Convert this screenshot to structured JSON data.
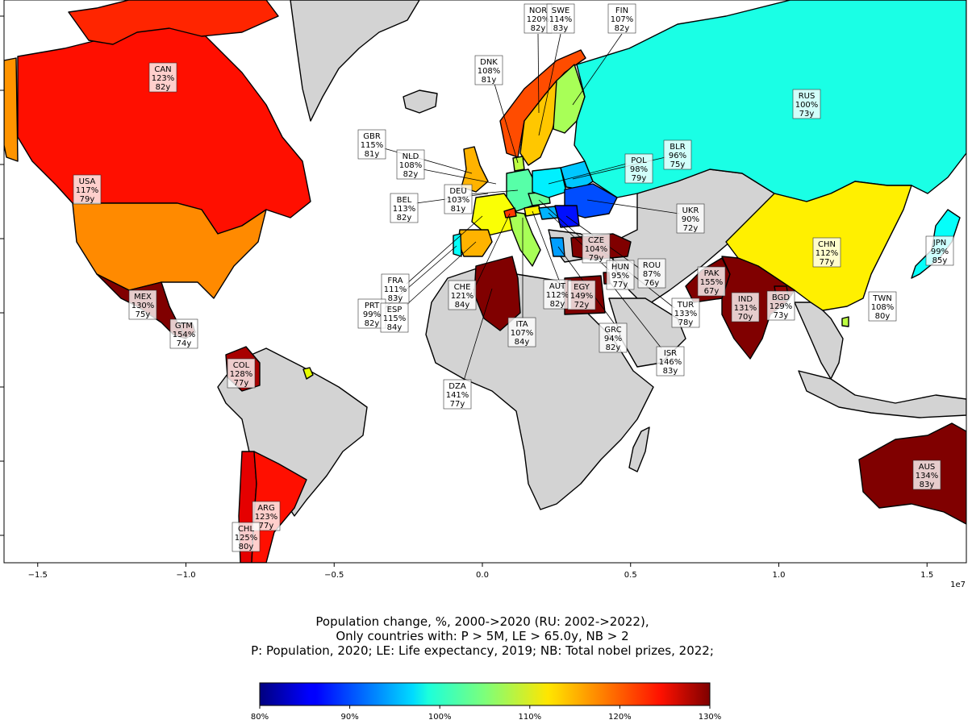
{
  "chart_data": {
    "type": "choropleth-map",
    "title_lines": [
      "Population change, %, 2000->2020 (RU: 2002->2022),",
      "Only countries with:  P > 5M, LE > 65.0y, NB > 2",
      "P: Population, 2020; LE: Life expectancy, 2019; NB: Total nobel prizes, 2022;"
    ],
    "x_axis": {
      "ticks": [
        {
          "value": -15000000,
          "label": "−1.5"
        },
        {
          "value": -10000000,
          "label": "−1.0"
        },
        {
          "value": -5000000,
          "label": "−0.5"
        },
        {
          "value": 0,
          "label": "0.0"
        },
        {
          "value": 5000000,
          "label": "0.5"
        },
        {
          "value": 10000000,
          "label": "1.0"
        },
        {
          "value": 15000000,
          "label": "1.5"
        }
      ],
      "offset_label": "1e7"
    },
    "colorbar": {
      "range": [
        80,
        130
      ],
      "ticks": [
        {
          "value": 80,
          "label": "80%"
        },
        {
          "value": 90,
          "label": "90%"
        },
        {
          "value": 100,
          "label": "100%"
        },
        {
          "value": 110,
          "label": "110%"
        },
        {
          "value": 120,
          "label": "120%"
        },
        {
          "value": 130,
          "label": "130%"
        }
      ],
      "colormap": "jet"
    },
    "other_land_color": "#d3d3d3",
    "countries": [
      {
        "code": "CAN",
        "pop_change": "123%",
        "life_exp": "82y",
        "value": 123
      },
      {
        "code": "USA",
        "pop_change": "117%",
        "life_exp": "79y",
        "value": 117
      },
      {
        "code": "MEX",
        "pop_change": "130%",
        "life_exp": "75y",
        "value": 130
      },
      {
        "code": "GTM",
        "pop_change": "154%",
        "life_exp": "74y",
        "value": 154
      },
      {
        "code": "COL",
        "pop_change": "128%",
        "life_exp": "77y",
        "value": 128
      },
      {
        "code": "ARG",
        "pop_change": "123%",
        "life_exp": "77y",
        "value": 123
      },
      {
        "code": "CHL",
        "pop_change": "125%",
        "life_exp": "80y",
        "value": 125
      },
      {
        "code": "GBR",
        "pop_change": "115%",
        "life_exp": "81y",
        "value": 115
      },
      {
        "code": "NLD",
        "pop_change": "108%",
        "life_exp": "82y",
        "value": 108
      },
      {
        "code": "BEL",
        "pop_change": "113%",
        "life_exp": "82y",
        "value": 113
      },
      {
        "code": "DEU",
        "pop_change": "103%",
        "life_exp": "81y",
        "value": 103
      },
      {
        "code": "FRA",
        "pop_change": "111%",
        "life_exp": "83y",
        "value": 111
      },
      {
        "code": "PRT",
        "pop_change": "99%",
        "life_exp": "82y",
        "value": 99
      },
      {
        "code": "ESP",
        "pop_change": "115%",
        "life_exp": "84y",
        "value": 115
      },
      {
        "code": "CHE",
        "pop_change": "121%",
        "life_exp": "84y",
        "value": 121
      },
      {
        "code": "ITA",
        "pop_change": "107%",
        "life_exp": "84y",
        "value": 107
      },
      {
        "code": "AUT",
        "pop_change": "112%",
        "life_exp": "82y",
        "value": 112
      },
      {
        "code": "DNK",
        "pop_change": "108%",
        "life_exp": "81y",
        "value": 108
      },
      {
        "code": "NOR",
        "pop_change": "120%",
        "life_exp": "82y",
        "value": 120
      },
      {
        "code": "SWE",
        "pop_change": "114%",
        "life_exp": "83y",
        "value": 114
      },
      {
        "code": "FIN",
        "pop_change": "107%",
        "life_exp": "82y",
        "value": 107
      },
      {
        "code": "POL",
        "pop_change": "98%",
        "life_exp": "79y",
        "value": 98
      },
      {
        "code": "BLR",
        "pop_change": "96%",
        "life_exp": "75y",
        "value": 96
      },
      {
        "code": "UKR",
        "pop_change": "90%",
        "life_exp": "72y",
        "value": 90
      },
      {
        "code": "CZE",
        "pop_change": "104%",
        "life_exp": "79y",
        "value": 104
      },
      {
        "code": "HUN",
        "pop_change": "95%",
        "life_exp": "77y",
        "value": 95
      },
      {
        "code": "ROU",
        "pop_change": "87%",
        "life_exp": "76y",
        "value": 87
      },
      {
        "code": "GRC",
        "pop_change": "94%",
        "life_exp": "82y",
        "value": 94
      },
      {
        "code": "TUR",
        "pop_change": "133%",
        "life_exp": "78y",
        "value": 133
      },
      {
        "code": "ISR",
        "pop_change": "146%",
        "life_exp": "83y",
        "value": 146
      },
      {
        "code": "EGY",
        "pop_change": "149%",
        "life_exp": "72y",
        "value": 149
      },
      {
        "code": "DZA",
        "pop_change": "141%",
        "life_exp": "77y",
        "value": 141
      },
      {
        "code": "RUS",
        "pop_change": "100%",
        "life_exp": "73y",
        "value": 100
      },
      {
        "code": "PAK",
        "pop_change": "155%",
        "life_exp": "67y",
        "value": 155
      },
      {
        "code": "IND",
        "pop_change": "131%",
        "life_exp": "70y",
        "value": 131
      },
      {
        "code": "BGD",
        "pop_change": "129%",
        "life_exp": "73y",
        "value": 129
      },
      {
        "code": "CHN",
        "pop_change": "112%",
        "life_exp": "77y",
        "value": 112
      },
      {
        "code": "JPN",
        "pop_change": "99%",
        "life_exp": "85y",
        "value": 99
      },
      {
        "code": "TWN",
        "pop_change": "108%",
        "life_exp": "80y",
        "value": 108
      },
      {
        "code": "AUS",
        "pop_change": "134%",
        "life_exp": "83y",
        "value": 134
      }
    ]
  }
}
